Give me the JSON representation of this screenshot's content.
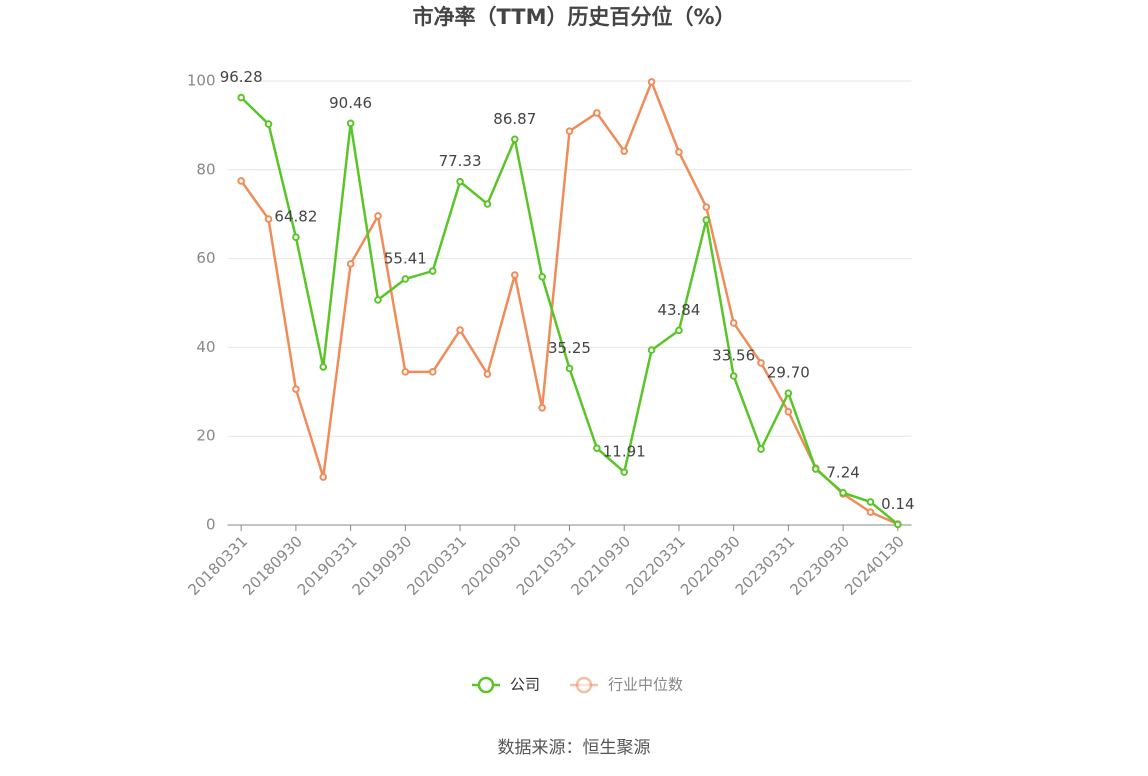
{
  "chart_data": {
    "type": "line",
    "title": "市净率（TTM）历史百分位（%）",
    "categories": [
      "20180331",
      null,
      "20180930",
      null,
      "20190331",
      null,
      "20190930",
      null,
      "20200331",
      null,
      "20200930",
      null,
      "20210331",
      null,
      "20210930",
      null,
      "20220331",
      null,
      "20220930",
      null,
      "20230331",
      null,
      "20230930",
      null,
      "20240130"
    ],
    "series": [
      {
        "name": "公司",
        "color": "#5ac528",
        "values": [
          96.28,
          90.3,
          64.82,
          35.6,
          90.46,
          50.7,
          55.41,
          57.2,
          77.33,
          72.3,
          86.87,
          55.9,
          35.25,
          17.3,
          11.91,
          39.4,
          43.84,
          68.7,
          33.56,
          17.1,
          29.7,
          12.6,
          7.24,
          5.2,
          0.14
        ],
        "value_labels": [
          "96.28",
          null,
          "64.82",
          null,
          "90.46",
          null,
          "55.41",
          null,
          "77.33",
          null,
          "86.87",
          null,
          "35.25",
          null,
          "11.91",
          null,
          "43.84",
          null,
          "33.56",
          null,
          "29.70",
          null,
          "7.24",
          null,
          "0.14"
        ]
      },
      {
        "name": "行业中位数",
        "color": "#f08c5a",
        "values": [
          77.5,
          68.9,
          30.6,
          10.8,
          58.8,
          69.6,
          34.5,
          34.5,
          43.9,
          34.0,
          56.3,
          26.4,
          88.7,
          92.8,
          84.2,
          99.8,
          84.0,
          71.6,
          45.5,
          36.5,
          25.5,
          12.8,
          7.0,
          2.9,
          0.2
        ]
      }
    ],
    "ylim": [
      0,
      100
    ],
    "yticks": [
      0,
      20,
      40,
      60,
      80,
      100
    ],
    "grid": true,
    "legend": "bottom",
    "source": "数据来源：恒生聚源"
  }
}
